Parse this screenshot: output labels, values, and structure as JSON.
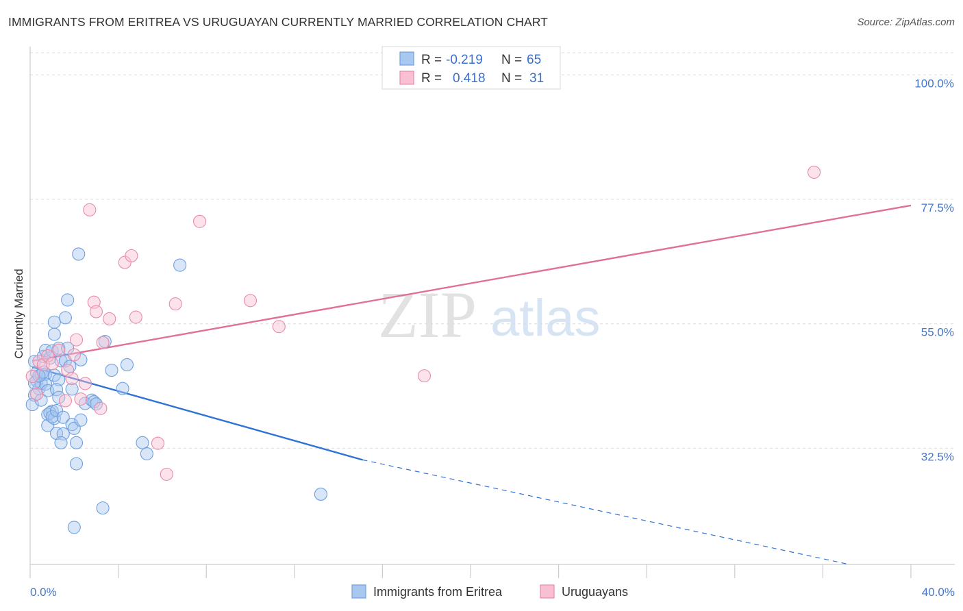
{
  "title": "IMMIGRANTS FROM ERITREA VS URUGUAYAN CURRENTLY MARRIED CORRELATION CHART",
  "source": "Source: ZipAtlas.com",
  "watermark": {
    "zip": "ZIP",
    "atlas": "atlas"
  },
  "legend": {
    "rows": [
      {
        "r_label": "R =",
        "r_value": "-0.219",
        "n_label": "N =",
        "n_value": "65",
        "color": "#a9c8f0",
        "stroke": "#6f9fe0"
      },
      {
        "r_label": "R =",
        "r_value": "0.418",
        "n_label": "N =",
        "n_value": "31",
        "color": "#f8c0d2",
        "stroke": "#e88aaa"
      }
    ]
  },
  "bottom_legend": [
    "Immigrants from Eritrea",
    "Uruguayans"
  ],
  "chart_data": {
    "type": "scatter",
    "xlabel": "",
    "ylabel": "Currently Married",
    "xlim": [
      0,
      40
    ],
    "ylim": [
      11.5,
      104
    ],
    "x_tick_labels": [
      {
        "value": 0,
        "label": "0.0%"
      },
      {
        "value": 40,
        "label": "40.0%"
      }
    ],
    "x_minor_ticks": [
      0,
      4,
      8,
      12,
      16,
      20,
      24,
      28,
      32,
      36,
      40
    ],
    "y_ticks": [
      {
        "value": 100,
        "label": "100.0%"
      },
      {
        "value": 77.5,
        "label": "77.5%"
      },
      {
        "value": 55,
        "label": "55.0%"
      },
      {
        "value": 32.5,
        "label": "32.5%"
      }
    ],
    "grid": true,
    "series": [
      {
        "name": "Immigrants from Eritrea",
        "color": "#a9c8f0",
        "stroke": "#6f9fe0",
        "line_color": "#2f73d4",
        "trend": {
          "x0": 0.1,
          "y0": 47.2,
          "x1": 15.1,
          "y1": 30.4,
          "x_dash_end": 37.2,
          "y_dash_end": 11.5
        },
        "points": [
          [
            0.2,
            48.2
          ],
          [
            0.3,
            46.1
          ],
          [
            0.3,
            44.7
          ],
          [
            0.4,
            43.3
          ],
          [
            0.2,
            42.1
          ],
          [
            0.1,
            40.4
          ],
          [
            0.5,
            45.8
          ],
          [
            0.5,
            44.2
          ],
          [
            0.6,
            46.3
          ],
          [
            0.7,
            45.9
          ],
          [
            0.7,
            44.1
          ],
          [
            0.8,
            42.9
          ],
          [
            0.5,
            41.2
          ],
          [
            0.6,
            49.1
          ],
          [
            0.7,
            50.2
          ],
          [
            0.9,
            48.8
          ],
          [
            1.0,
            50.1
          ],
          [
            1.1,
            45.7
          ],
          [
            1.0,
            39.2
          ],
          [
            0.8,
            38.6
          ],
          [
            0.9,
            38.9
          ],
          [
            0.8,
            36.6
          ],
          [
            1.1,
            37.9
          ],
          [
            1.0,
            38.2
          ],
          [
            1.2,
            39.3
          ],
          [
            1.1,
            53.1
          ],
          [
            1.1,
            55.3
          ],
          [
            1.3,
            50.6
          ],
          [
            1.4,
            48.3
          ],
          [
            1.3,
            44.9
          ],
          [
            1.2,
            43.1
          ],
          [
            1.3,
            41.7
          ],
          [
            1.2,
            35.2
          ],
          [
            1.5,
            35.1
          ],
          [
            1.4,
            33.5
          ],
          [
            1.5,
            38.1
          ],
          [
            1.6,
            48.3
          ],
          [
            1.6,
            56.1
          ],
          [
            1.7,
            59.3
          ],
          [
            1.7,
            50.6
          ],
          [
            1.8,
            47.3
          ],
          [
            1.9,
            43.2
          ],
          [
            1.9,
            36.8
          ],
          [
            2.0,
            36.1
          ],
          [
            2.1,
            33.5
          ],
          [
            2.1,
            29.7
          ],
          [
            2.0,
            18.2
          ],
          [
            2.2,
            67.6
          ],
          [
            2.3,
            48.5
          ],
          [
            2.3,
            37.6
          ],
          [
            2.5,
            40.6
          ],
          [
            2.8,
            41.2
          ],
          [
            2.9,
            40.9
          ],
          [
            3.0,
            40.5
          ],
          [
            3.3,
            21.7
          ],
          [
            3.4,
            51.8
          ],
          [
            3.7,
            46.6
          ],
          [
            4.2,
            43.3
          ],
          [
            4.4,
            47.6
          ],
          [
            5.1,
            33.5
          ],
          [
            5.3,
            31.5
          ],
          [
            6.8,
            65.6
          ],
          [
            13.2,
            24.2
          ],
          [
            0.2,
            44.3
          ],
          [
            0.4,
            45.6
          ]
        ]
      },
      {
        "name": "Uruguayans",
        "color": "#f8c0d2",
        "stroke": "#e88aaa",
        "line_color": "#e07098",
        "trend": {
          "x0": 0.1,
          "y0": 48.3,
          "x1": 40.0,
          "y1": 76.4
        },
        "points": [
          [
            0.3,
            42.3
          ],
          [
            0.4,
            48.2
          ],
          [
            0.6,
            47.6
          ],
          [
            0.8,
            49.2
          ],
          [
            1.0,
            47.8
          ],
          [
            1.3,
            50.2
          ],
          [
            1.6,
            41.1
          ],
          [
            1.7,
            46.6
          ],
          [
            1.9,
            45.1
          ],
          [
            2.0,
            49.4
          ],
          [
            2.1,
            52.1
          ],
          [
            2.3,
            41.4
          ],
          [
            2.5,
            44.2
          ],
          [
            2.7,
            75.6
          ],
          [
            2.9,
            58.9
          ],
          [
            3.0,
            57.2
          ],
          [
            3.2,
            39.7
          ],
          [
            3.3,
            51.6
          ],
          [
            3.6,
            55.9
          ],
          [
            4.3,
            66.1
          ],
          [
            4.6,
            67.3
          ],
          [
            4.8,
            56.2
          ],
          [
            5.8,
            33.4
          ],
          [
            6.2,
            27.8
          ],
          [
            6.6,
            58.6
          ],
          [
            7.7,
            73.5
          ],
          [
            10.0,
            59.2
          ],
          [
            11.3,
            54.5
          ],
          [
            17.9,
            45.6
          ],
          [
            35.6,
            82.4
          ],
          [
            0.1,
            45.5
          ]
        ]
      }
    ]
  }
}
